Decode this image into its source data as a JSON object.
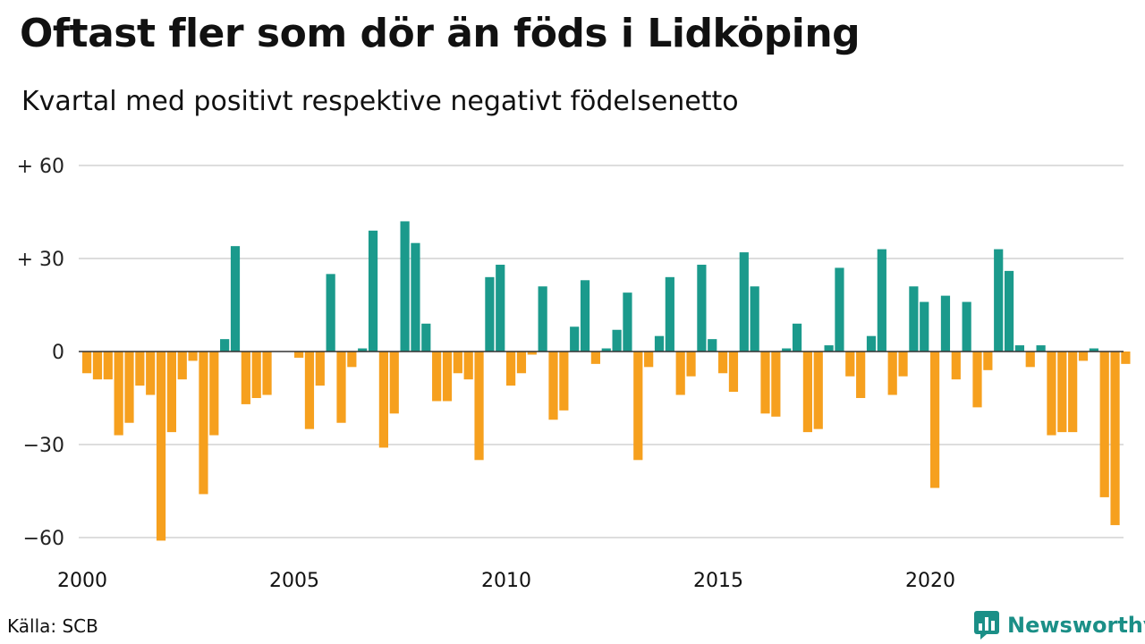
{
  "title": "Oftast fler som dör än föds i Lidköping",
  "subtitle": "Kvartal med positivt respektive negativt födelsenetto",
  "source": "Källa: SCB",
  "brand": "Newsworthy",
  "colors": {
    "positive": "#1b9a8c",
    "negative": "#f6a01e",
    "brand": "#1b8f87"
  },
  "chart_data": {
    "type": "bar",
    "ylim": [
      -66,
      64
    ],
    "yticks": [
      {
        "value": 60,
        "label": "+ 60"
      },
      {
        "value": 30,
        "label": "+ 30"
      },
      {
        "value": 0,
        "label": "0"
      },
      {
        "value": -30,
        "label": "−30"
      },
      {
        "value": -60,
        "label": "−60"
      }
    ],
    "xticks": [
      {
        "year": 2000,
        "label": "2000"
      },
      {
        "year": 2005,
        "label": "2005"
      },
      {
        "year": 2010,
        "label": "2010"
      },
      {
        "year": 2015,
        "label": "2015"
      },
      {
        "year": 2020,
        "label": "2020"
      }
    ],
    "start": "2000 Q1",
    "grid": true,
    "values": [
      -7,
      -9,
      -9,
      -27,
      -23,
      -11,
      -14,
      -61,
      -26,
      -9,
      -3,
      -46,
      -27,
      4,
      34,
      -17,
      -15,
      -14,
      0,
      0,
      -2,
      -25,
      -11,
      25,
      -23,
      -5,
      1,
      39,
      -31,
      -20,
      42,
      35,
      9,
      -16,
      -16,
      -7,
      -9,
      -35,
      24,
      28,
      -11,
      -7,
      -1,
      21,
      -22,
      -19,
      8,
      23,
      -4,
      1,
      7,
      19,
      -35,
      -5,
      5,
      24,
      -14,
      -8,
      28,
      4,
      -7,
      -13,
      32,
      21,
      -20,
      -21,
      1,
      9,
      -26,
      -25,
      2,
      27,
      -8,
      -15,
      5,
      33,
      -14,
      -8,
      21,
      16,
      -44,
      18,
      -9,
      16,
      -18,
      -6,
      33,
      26,
      2,
      -5,
      2,
      -27,
      -26,
      -26,
      -3,
      1,
      -47,
      -56,
      -4
    ]
  }
}
